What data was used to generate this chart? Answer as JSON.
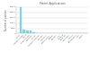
{
  "title": "Patent Applications",
  "ylabel": "Number of patents",
  "categories": [
    "China",
    "United States",
    "Japan",
    "South Korea",
    "Germany",
    "France",
    "United Kingdom",
    "Canada",
    "Australia",
    "Netherlands",
    "Russia",
    "Sweden",
    "India",
    "Finland",
    "Belgium",
    "Denmark",
    "Austria",
    "Switzerland",
    "Italy",
    "Spain"
  ],
  "values": [
    25000,
    3900,
    3200,
    2900,
    900,
    700,
    500,
    450,
    380,
    340,
    300,
    280,
    260,
    240,
    220,
    200,
    190,
    180,
    170,
    160
  ],
  "bar_color": "#7fd8ea",
  "bar_edge_color": "#5bbccc",
  "background_color": "#ffffff",
  "grid_color": "#cccccc",
  "ylim": [
    0,
    26000
  ],
  "yticks": [
    0,
    5000,
    10000,
    15000,
    20000,
    25000
  ],
  "title_fontsize": 2.2,
  "label_fontsize": 1.8,
  "tick_fontsize": 1.6
}
